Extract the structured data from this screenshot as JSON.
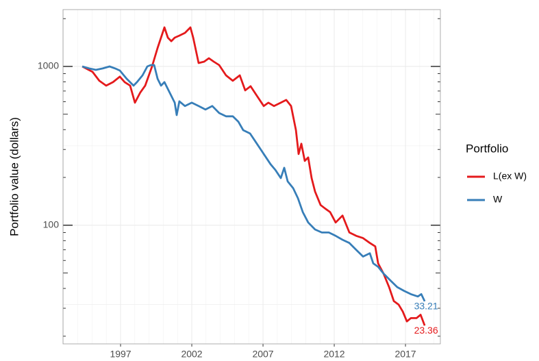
{
  "chart_data": {
    "type": "line",
    "y_label": "Portfolio value (dollars)",
    "legend_title": "Portfolio",
    "legend_position": "right",
    "log_y": true,
    "grid": true,
    "xlim": [
      1992.96,
      2019.45
    ],
    "ylim": [
      17.9,
      2280
    ],
    "xticks": [
      1997,
      2002,
      2007,
      2012,
      2017
    ],
    "yticks": [
      100,
      1000
    ],
    "series": [
      {
        "name": "L(ex W)",
        "color": "#e41a1c",
        "x": [
          1994.31,
          1995.03,
          1995.51,
          1995.99,
          1996.47,
          1996.95,
          1997.29,
          1997.67,
          1998.01,
          1998.39,
          1998.73,
          1999.21,
          1999.6,
          2000.08,
          2000.32,
          2000.56,
          2000.8,
          2001.13,
          2001.52,
          2001.9,
          2002.1,
          2002.48,
          2002.87,
          2003.2,
          2003.54,
          2003.92,
          2004.4,
          2004.88,
          2005.37,
          2005.75,
          2006.13,
          2006.57,
          2007.05,
          2007.38,
          2007.77,
          2008.25,
          2008.63,
          2008.97,
          2009.31,
          2009.5,
          2009.69,
          2009.93,
          2010.17,
          2010.41,
          2010.65,
          2011.04,
          2011.38,
          2011.71,
          2012.1,
          2012.58,
          2013.06,
          2013.54,
          2014.02,
          2014.5,
          2014.88,
          2015.08,
          2015.46,
          2015.85,
          2016.18,
          2016.52,
          2016.81,
          2017.1,
          2017.38,
          2017.77,
          2018.06,
          2018.35
        ],
        "values": [
          1000,
          924,
          812,
          757,
          796,
          862,
          796,
          757,
          591,
          686,
          757,
          1000,
          1307,
          1761,
          1517,
          1443,
          1517,
          1563,
          1627,
          1761,
          1517,
          1051,
          1072,
          1126,
          1072,
          1020,
          879,
          812,
          879,
          707,
          750,
          653,
          563,
          591,
          563,
          591,
          615,
          563,
          397,
          281,
          326,
          254,
          267,
          198,
          163,
          134,
          127,
          121,
          104,
          115,
          90,
          85.7,
          83,
          77.3,
          73.6,
          57.5,
          49.6,
          40.8,
          33.3,
          31.6,
          28.6,
          24.8,
          26,
          26,
          27.3,
          23.36
        ]
      },
      {
        "name": "W",
        "color": "#377eb8",
        "x": [
          1994.31,
          1994.79,
          1995.27,
          1995.75,
          1996.23,
          1996.62,
          1996.95,
          1997.43,
          1997.91,
          1998.15,
          1998.54,
          1998.88,
          1999.12,
          1999.36,
          1999.6,
          1999.84,
          2000.08,
          2000.56,
          2000.8,
          2000.94,
          2001.13,
          2001.52,
          2002.0,
          2002.48,
          2002.96,
          2003.44,
          2003.92,
          2004.4,
          2004.88,
          2005.27,
          2005.61,
          2006.09,
          2006.57,
          2007.05,
          2007.53,
          2007.87,
          2008.25,
          2008.49,
          2008.73,
          2009.12,
          2009.45,
          2009.79,
          2010.17,
          2010.65,
          2011.13,
          2011.62,
          2012.1,
          2012.58,
          2013.06,
          2013.54,
          2014.02,
          2014.5,
          2014.74,
          2015.08,
          2015.46,
          2015.94,
          2016.42,
          2016.9,
          2017.38,
          2017.87,
          2018.11,
          2018.35
        ],
        "values": [
          1000,
          971,
          951,
          971,
          1000,
          971,
          942,
          836,
          757,
          796,
          879,
          1000,
          1020,
          1020,
          836,
          757,
          796,
          653,
          591,
          494,
          603,
          563,
          591,
          563,
          535,
          563,
          509,
          485,
          485,
          448,
          397,
          378,
          326,
          281,
          242,
          223,
          198,
          230,
          189,
          171,
          148,
          121,
          104,
          94,
          90,
          90,
          85.7,
          81,
          77.3,
          70,
          63.5,
          66.6,
          57.5,
          54.7,
          49.6,
          44.9,
          40.8,
          38.6,
          36.8,
          35.6,
          36.8,
          33.21
        ]
      }
    ]
  }
}
